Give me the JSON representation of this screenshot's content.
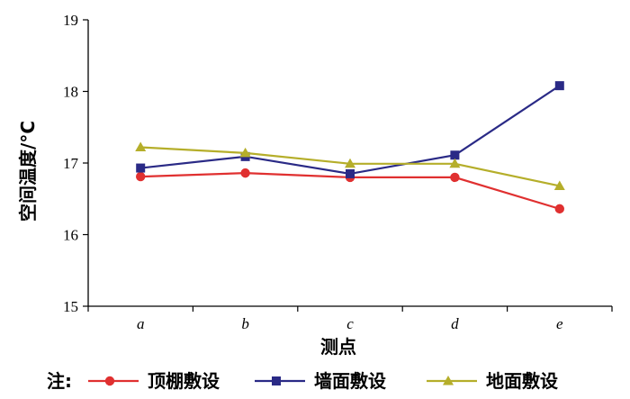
{
  "chart_data": {
    "type": "line",
    "categories": [
      "a",
      "b",
      "c",
      "d",
      "e"
    ],
    "xlabel": "测点",
    "ylabel": "空间温度/°C",
    "ylim": [
      15,
      19
    ],
    "yticks": [
      "15",
      "16",
      "17",
      "18",
      "19"
    ],
    "grid": false,
    "legend_note": "注:",
    "legend_position": "bottom",
    "series": [
      {
        "name": "顶棚敷设",
        "color": "#e03030",
        "marker": "circle",
        "values": [
          16.81,
          16.86,
          16.8,
          16.8,
          16.36
        ]
      },
      {
        "name": "墙面敷设",
        "color": "#2a2a86",
        "marker": "square",
        "values": [
          16.93,
          17.09,
          16.85,
          17.11,
          18.08
        ]
      },
      {
        "name": "地面敷设",
        "color": "#b5ae2a",
        "marker": "triangle",
        "values": [
          17.22,
          17.14,
          16.99,
          16.99,
          16.68
        ]
      }
    ]
  }
}
